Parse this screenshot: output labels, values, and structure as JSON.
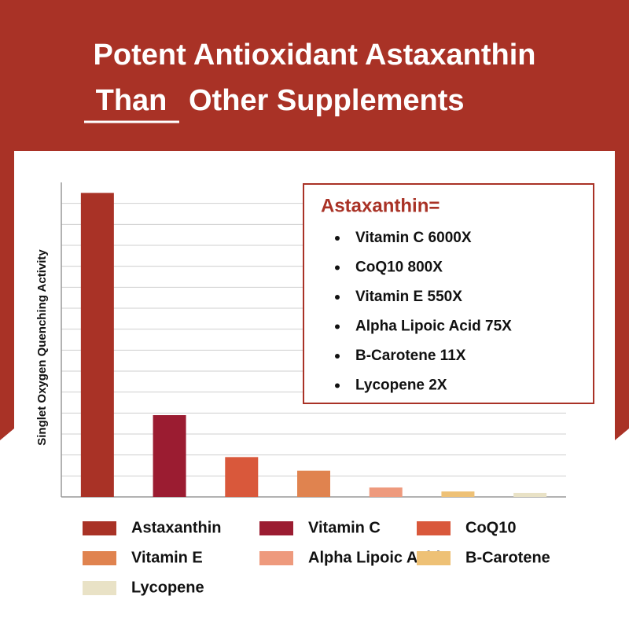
{
  "chart_data": {
    "type": "bar",
    "title": {
      "line1": "Potent Antioxidant  Astaxanthin",
      "line2_emphasis": "Than",
      "line2_rest": "Other Supplements"
    },
    "y_label": "Singlet Oxygen Quenching Activity",
    "categories": [
      "Astaxanthin",
      "Vitamin C",
      "CoQ10",
      "Vitamin E",
      "Alpha Lipoic Acid",
      "B-Carotene",
      "Lycopene"
    ],
    "values": [
      14.5,
      3.9,
      1.9,
      1.25,
      0.45,
      0.26,
      0.19
    ],
    "colors": [
      "#a93226",
      "#9b1c31",
      "#d9583b",
      "#e0834f",
      "#ee9a7d",
      "#eec176",
      "#e9e2c6"
    ],
    "ylim": [
      0,
      15
    ],
    "yticks": [
      1,
      2,
      3,
      4,
      5,
      6,
      7,
      8,
      9,
      10,
      11,
      12,
      13,
      14
    ],
    "grid": true,
    "annotation": {
      "heading": "Astaxanthin=",
      "items": [
        "Vitamin C  6000X",
        "CoQ10  800X",
        "Vitamin E  550X",
        "Alpha Lipoic Acid  75X",
        "B-Carotene  11X",
        "Lycopene  2X"
      ]
    }
  }
}
